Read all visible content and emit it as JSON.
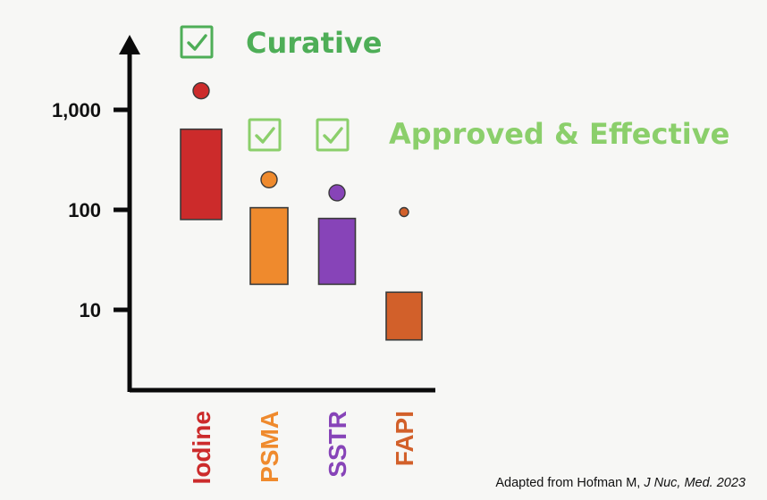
{
  "chart_data": {
    "type": "range-bar",
    "title": "",
    "xlabel": "",
    "ylabel": "",
    "yscale": "log",
    "ylim": [
      2,
      3500
    ],
    "yticks": [
      10,
      100,
      1000
    ],
    "ytick_labels": [
      "10",
      "100",
      "1,000"
    ],
    "categories": [
      "Iodine",
      "PSMA",
      "SSTR",
      "FAPI"
    ],
    "category_label_texts": [
      "Iodine",
      "PSMA",
      "SSTR",
      "FAPI"
    ],
    "ranges": [
      {
        "category": "Iodine",
        "low": 80,
        "high": 640,
        "color": "#cc2b2b"
      },
      {
        "category": "PSMA",
        "low": 18,
        "high": 105,
        "color": "#ef8a2d"
      },
      {
        "category": "SSTR",
        "low": 18,
        "high": 82,
        "color": "#8744b8"
      },
      {
        "category": "FAPI",
        "low": 5,
        "high": 15,
        "color": "#d2602a"
      }
    ],
    "points": [
      {
        "category": "Iodine",
        "value": 1550,
        "color": "#cc2b2b"
      },
      {
        "category": "PSMA",
        "value": 200,
        "color": "#ef8a2d"
      },
      {
        "category": "SSTR",
        "value": 148,
        "color": "#8744b8"
      },
      {
        "category": "FAPI",
        "value": 95,
        "color": "#d2602a"
      }
    ],
    "grid": false,
    "legend": "none",
    "annotations": [
      {
        "label": "Curative",
        "color": "#4eae57",
        "checkmarks": [
          "Iodine"
        ]
      },
      {
        "label": "Approved & Effective",
        "color": "#8bcf6b",
        "checkmarks": [
          "PSMA",
          "SSTR"
        ]
      }
    ]
  },
  "source_note": {
    "prefix": "Adapted from Hofman M, ",
    "italic": "J Nuc, Med. 2023"
  }
}
